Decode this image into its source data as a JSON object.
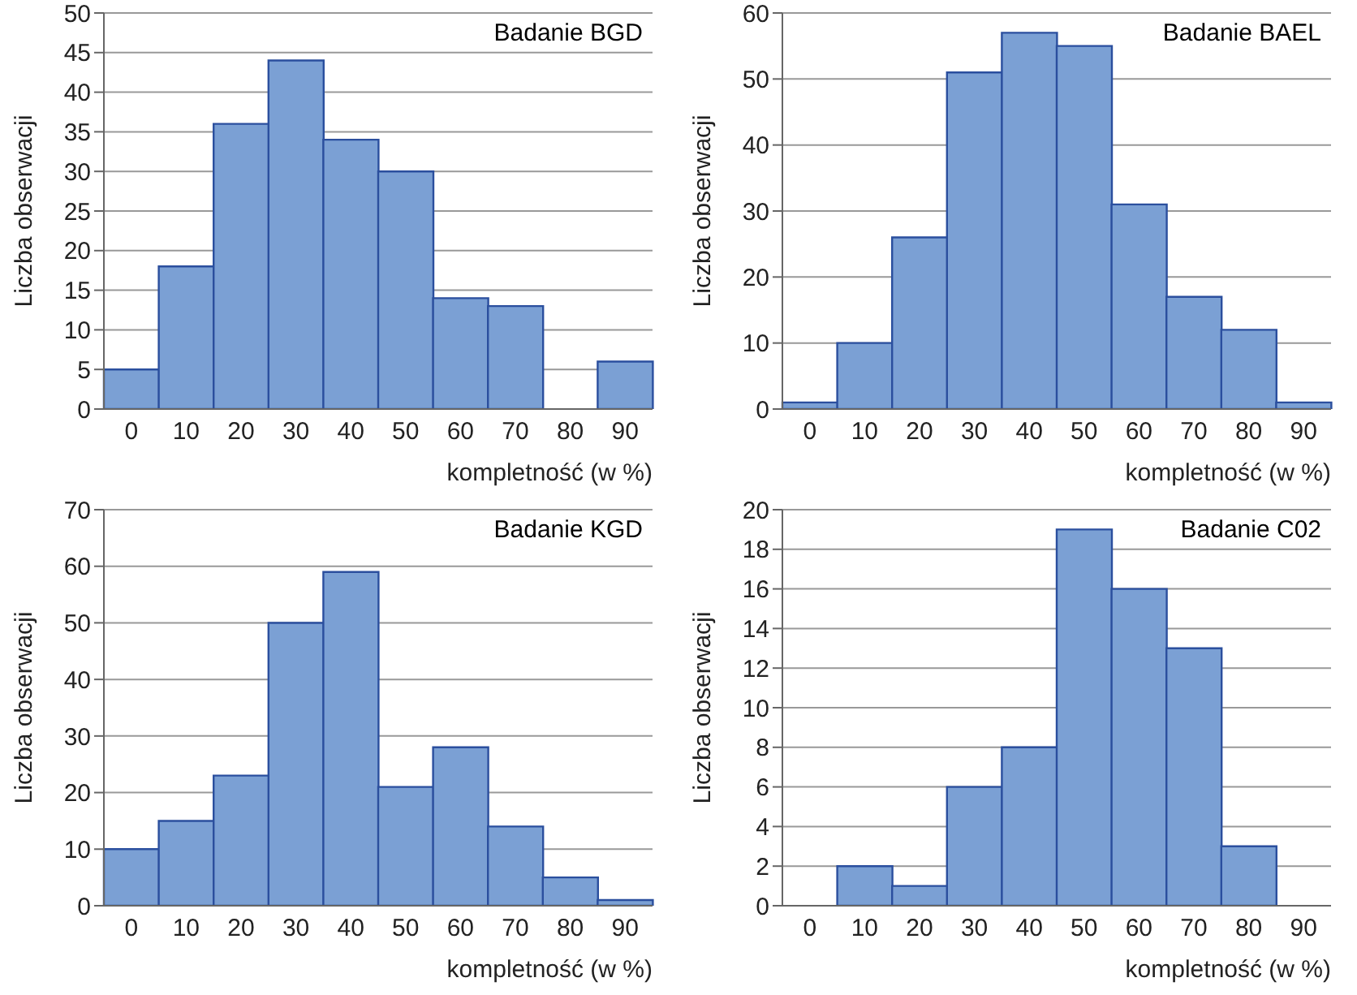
{
  "chart_data": [
    {
      "type": "bar",
      "title": "Badanie BGD",
      "xlabel": "kompletność (w %)",
      "ylabel": "Liczba obserwacji",
      "categories": [
        "0",
        "10",
        "20",
        "30",
        "40",
        "50",
        "60",
        "70",
        "80",
        "90"
      ],
      "values": [
        5,
        18,
        36,
        44,
        34,
        30,
        14,
        13,
        0,
        6
      ],
      "color": "#7ba0d4",
      "ylim": [
        0,
        50
      ],
      "yticks": [
        0,
        5,
        10,
        15,
        20,
        25,
        30,
        35,
        40,
        45,
        50
      ],
      "grid": "y"
    },
    {
      "type": "bar",
      "title": "Badanie BAEL",
      "xlabel": "kompletność (w %)",
      "ylabel": "Liczba obserwacji",
      "categories": [
        "0",
        "10",
        "20",
        "30",
        "40",
        "50",
        "60",
        "70",
        "80",
        "90"
      ],
      "values": [
        1,
        10,
        26,
        51,
        57,
        55,
        31,
        17,
        12,
        1
      ],
      "color": "#7ba0d4",
      "ylim": [
        0,
        60
      ],
      "yticks": [
        0,
        10,
        20,
        30,
        40,
        50,
        60
      ],
      "grid": "y"
    },
    {
      "type": "bar",
      "title": "Badanie KGD",
      "xlabel": "kompletność (w %)",
      "ylabel": "Liczba obserwacji",
      "categories": [
        "0",
        "10",
        "20",
        "30",
        "40",
        "50",
        "60",
        "70",
        "80",
        "90"
      ],
      "values": [
        10,
        15,
        23,
        50,
        59,
        21,
        28,
        14,
        5,
        1
      ],
      "color": "#7ba0d4",
      "ylim": [
        0,
        70
      ],
      "yticks": [
        0,
        10,
        20,
        30,
        40,
        50,
        60,
        70
      ],
      "grid": "y"
    },
    {
      "type": "bar",
      "title": "Badanie C02",
      "xlabel": "kompletność (w %)",
      "ylabel": "Liczba obserwacji",
      "categories": [
        "0",
        "10",
        "20",
        "30",
        "40",
        "50",
        "60",
        "70",
        "80",
        "90"
      ],
      "values": [
        0,
        2,
        1,
        6,
        8,
        19,
        16,
        13,
        3,
        0
      ],
      "color": "#7ba0d4",
      "ylim": [
        0,
        20
      ],
      "yticks": [
        0,
        2,
        4,
        6,
        8,
        10,
        12,
        14,
        16,
        18,
        20
      ],
      "grid": "y"
    }
  ]
}
